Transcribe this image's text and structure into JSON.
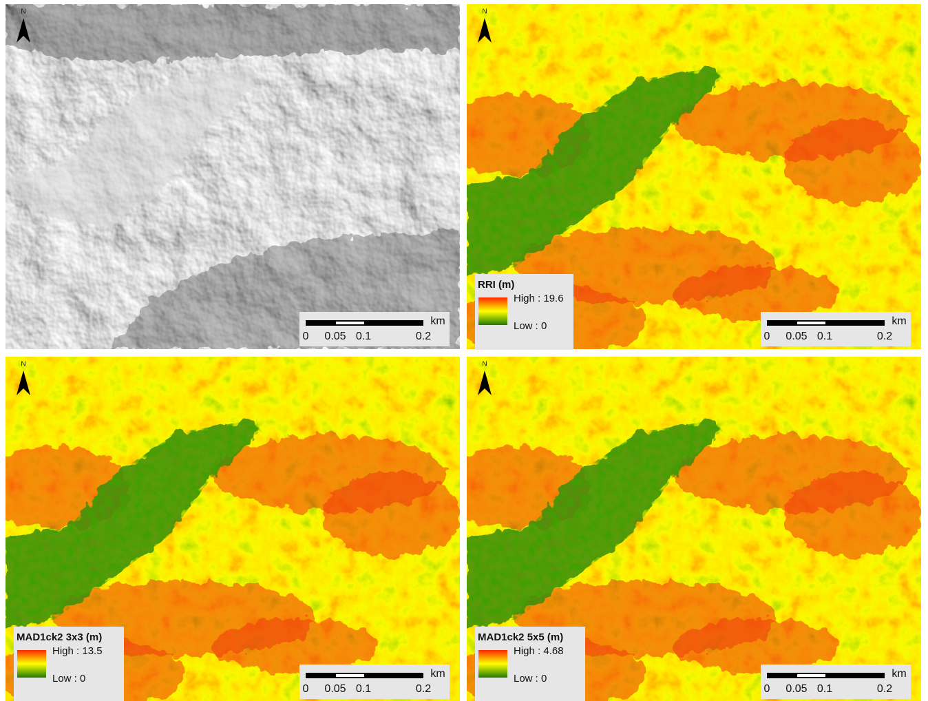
{
  "panels": [
    {
      "north": "N",
      "scale": {
        "labels": [
          "0",
          "0.05",
          "0.1",
          "0.2"
        ],
        "unit": "km"
      }
    },
    {
      "north": "N",
      "legend": {
        "title": "RRI (m)",
        "high": "High : 19.6",
        "low": "Low : 0"
      },
      "scale": {
        "labels": [
          "0",
          "0.05",
          "0.1",
          "0.2"
        ],
        "unit": "km"
      }
    },
    {
      "north": "N",
      "legend": {
        "title": "MAD1ck2 3x3 (m)",
        "high": "High : 13.5",
        "low": "Low : 0"
      },
      "scale": {
        "labels": [
          "0",
          "0.05",
          "0.1",
          "0.2"
        ],
        "unit": "km"
      }
    },
    {
      "north": "N",
      "legend": {
        "title": "MAD1ck2 5x5 (m)",
        "high": "High : 4.68",
        "low": "Low : 0"
      },
      "scale": {
        "labels": [
          "0",
          "0.05",
          "0.1",
          "0.2"
        ],
        "unit": "km"
      }
    }
  ]
}
